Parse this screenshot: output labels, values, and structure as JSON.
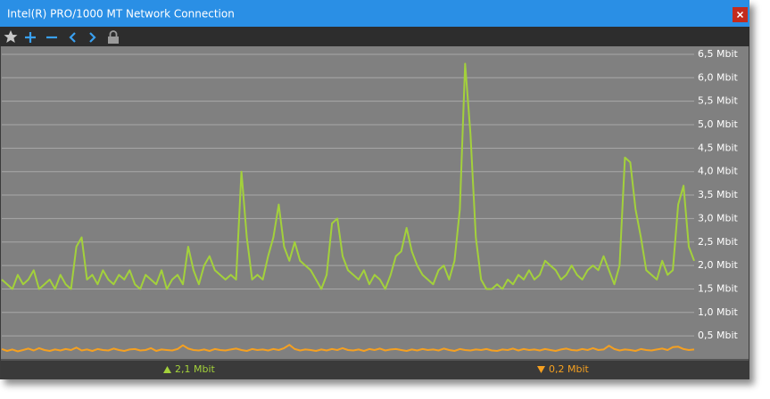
{
  "window": {
    "title": "Intel(R) PRO/1000 MT Network Connection"
  },
  "chart_data": {
    "type": "line",
    "ylim": [
      0,
      6.67
    ],
    "yticks": [
      {
        "value": 0.5,
        "label": "0,5 Mbit"
      },
      {
        "value": 1.0,
        "label": "1,0 Mbit"
      },
      {
        "value": 1.5,
        "label": "1,5 Mbit"
      },
      {
        "value": 2.0,
        "label": "2,0 Mbit"
      },
      {
        "value": 2.5,
        "label": "2,5 Mbit"
      },
      {
        "value": 3.0,
        "label": "3,0 Mbit"
      },
      {
        "value": 3.5,
        "label": "3,5 Mbit"
      },
      {
        "value": 4.0,
        "label": "4,0 Mbit"
      },
      {
        "value": 4.5,
        "label": "4,5 Mbit"
      },
      {
        "value": 5.0,
        "label": "5,0 Mbit"
      },
      {
        "value": 5.5,
        "label": "5,5 Mbit"
      },
      {
        "value": 6.0,
        "label": "6,0 Mbit"
      },
      {
        "value": 6.5,
        "label": "6,5 Mbit"
      }
    ],
    "grid": true,
    "series": [
      {
        "color": "#a3d13b",
        "current": {
          "value": 2.1,
          "label": "2,1 Mbit"
        },
        "values": [
          1.7,
          1.6,
          1.5,
          1.8,
          1.6,
          1.7,
          1.9,
          1.5,
          1.6,
          1.7,
          1.5,
          1.8,
          1.6,
          1.5,
          2.4,
          2.6,
          1.7,
          1.8,
          1.6,
          1.9,
          1.7,
          1.6,
          1.8,
          1.7,
          1.9,
          1.6,
          1.5,
          1.8,
          1.7,
          1.6,
          1.9,
          1.5,
          1.7,
          1.8,
          1.6,
          2.4,
          1.9,
          1.6,
          2.0,
          2.2,
          1.9,
          1.8,
          1.7,
          1.8,
          1.7,
          4.0,
          2.6,
          1.7,
          1.8,
          1.7,
          2.2,
          2.6,
          3.3,
          2.4,
          2.1,
          2.5,
          2.1,
          2.0,
          1.9,
          1.7,
          1.5,
          1.8,
          2.9,
          3.0,
          2.2,
          1.9,
          1.8,
          1.7,
          1.9,
          1.6,
          1.8,
          1.7,
          1.5,
          1.8,
          2.2,
          2.3,
          2.8,
          2.3,
          2.0,
          1.8,
          1.7,
          1.6,
          1.9,
          2.0,
          1.7,
          2.1,
          3.2,
          6.3,
          4.8,
          2.6,
          1.7,
          1.5,
          1.5,
          1.6,
          1.5,
          1.7,
          1.6,
          1.8,
          1.7,
          1.9,
          1.7,
          1.8,
          2.1,
          2.0,
          1.9,
          1.7,
          1.8,
          2.0,
          1.8,
          1.7,
          1.9,
          2.0,
          1.9,
          2.2,
          1.9,
          1.6,
          2.0,
          4.3,
          4.2,
          3.2,
          2.6,
          1.9,
          1.8,
          1.7,
          2.1,
          1.8,
          1.9,
          3.3,
          3.7,
          2.4,
          2.1
        ]
      },
      {
        "color": "#f5a020",
        "current": {
          "value": 0.2,
          "label": "0,2 Mbit"
        },
        "values": [
          0.22,
          0.18,
          0.21,
          0.17,
          0.2,
          0.23,
          0.19,
          0.24,
          0.2,
          0.18,
          0.21,
          0.19,
          0.22,
          0.2,
          0.25,
          0.19,
          0.21,
          0.18,
          0.22,
          0.2,
          0.19,
          0.23,
          0.2,
          0.18,
          0.21,
          0.22,
          0.19,
          0.2,
          0.24,
          0.18,
          0.21,
          0.2,
          0.19,
          0.22,
          0.3,
          0.23,
          0.2,
          0.19,
          0.21,
          0.18,
          0.22,
          0.2,
          0.19,
          0.21,
          0.23,
          0.2,
          0.18,
          0.22,
          0.2,
          0.21,
          0.19,
          0.22,
          0.2,
          0.24,
          0.31,
          0.22,
          0.19,
          0.21,
          0.2,
          0.18,
          0.21,
          0.19,
          0.22,
          0.2,
          0.24,
          0.2,
          0.19,
          0.21,
          0.18,
          0.22,
          0.2,
          0.23,
          0.19,
          0.21,
          0.22,
          0.2,
          0.18,
          0.21,
          0.19,
          0.22,
          0.2,
          0.21,
          0.19,
          0.23,
          0.2,
          0.18,
          0.22,
          0.2,
          0.19,
          0.21,
          0.2,
          0.22,
          0.19,
          0.18,
          0.21,
          0.2,
          0.23,
          0.19,
          0.22,
          0.2,
          0.21,
          0.19,
          0.22,
          0.2,
          0.18,
          0.21,
          0.23,
          0.2,
          0.19,
          0.22,
          0.2,
          0.24,
          0.2,
          0.21,
          0.29,
          0.22,
          0.19,
          0.21,
          0.2,
          0.18,
          0.22,
          0.2,
          0.19,
          0.21,
          0.23,
          0.2,
          0.26,
          0.27,
          0.22,
          0.2,
          0.21
        ]
      }
    ]
  }
}
